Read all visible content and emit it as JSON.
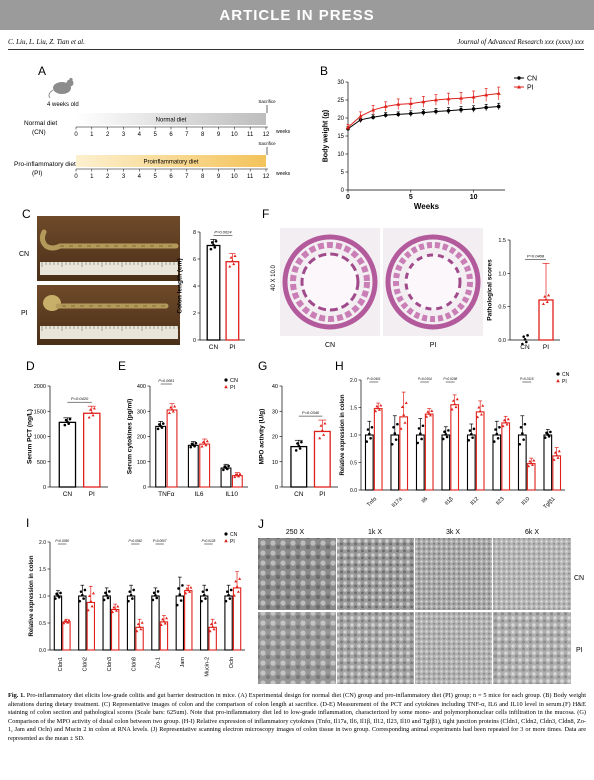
{
  "banner": "ARTICLE IN PRESS",
  "header": {
    "authors": "C. Liu, L. Liu, Z. Tian et al.",
    "journal": "Journal of Advanced Research xxx (xxxx) xxx"
  },
  "caption": {
    "fig_label": "Fig. 1.",
    "text": " Pro-inflammatory diet elicits low-grade colitis and gut barrier destruction in mice. (A) Experimental design for normal diet (CN) group and pro-inflammatory diet (PI) group; n = 5 mice for each group. (B) Body weight alterations during dietary treatment. (C) Representative images of colon and the comparison of colon length at sacrifice. (D-E) Measurement of the PCT and cytokines including TNF-α, IL6 and IL10 level in serum.(F) H&E staining of colon section and pathological scores (Scale bars: 625um). Note that pro-inflammatory diet led to low-grade inflammation, characterized by some mono- and polymorphonuclear cells infiltration in the mucosa. (G) Comparison of the MPO activity of distal colon between two group. (H-I) Relative expression of inflammatory cytokines (Tnfα, Il17a, Il6, Il1β, Il12, Il23, Il10 and Tgfβ1), tight junction proteins (Cldn1, Cldn2, Cldn3, Cldn8, Zo-1, Jam and Ocln) and Mucin 2 in colon at RNA levels. (J) Representative scanning electron microscopy images of colon tissue in two group. Corresponding animal experiments had been repeated for 3 or more times. Data are represented as the mean ± SD."
  },
  "colors": {
    "cn": "#000000",
    "pi": "#e0201b",
    "normal_bar": "#d8d8d8",
    "pi_bar": "#f7d27d",
    "he_stain": "#b35a9c"
  },
  "panel_a": {
    "label": "A",
    "mouse_label": "4 weeks old",
    "row1_label_line1": "Normal diet",
    "row1_label_line2": "(CN)",
    "row1_bar_text": "Normal diet",
    "row1_arrow_text": "Sacrifice",
    "row2_label_line1": "Pro-inflammatory diet",
    "row2_label_line2": "(PI)",
    "row2_bar_text": "Proinflammatory diet",
    "row2_arrow_text": "Sacrifice",
    "weeks_label": "weeks",
    "ticks": [
      "0",
      "1",
      "2",
      "3",
      "4",
      "5",
      "6",
      "7",
      "8",
      "9",
      "10",
      "11",
      "12"
    ]
  },
  "panel_c_photo": {
    "label": "C",
    "row_cn": "CN",
    "row_pi": "PI"
  },
  "panel_f_photo": {
    "label": "F",
    "side_label": "40 X 10.0",
    "col_cn": "CN",
    "col_pi": "PI"
  },
  "panel_j": {
    "label": "J",
    "columns": [
      "250 X",
      "1k X",
      "3k X",
      "6k X"
    ],
    "rows": [
      "CN",
      "PI"
    ]
  },
  "chart_data": [
    {
      "panel": "B",
      "type": "line",
      "xlabel": "Weeks",
      "ylabel": "Body weight (g)",
      "ylim": [
        0,
        30
      ],
      "xlim": [
        0,
        12.5
      ],
      "xticks": [
        0,
        5,
        10
      ],
      "yticks": [
        0,
        5,
        10,
        15,
        20,
        25,
        30
      ],
      "legend": "top-right",
      "x": [
        0,
        1,
        2,
        3,
        4,
        5,
        6,
        7,
        8,
        9,
        10,
        11,
        12
      ],
      "series": [
        {
          "name": "CN",
          "values": [
            17.0,
            19.5,
            20.2,
            20.8,
            21.0,
            21.2,
            21.5,
            21.8,
            22.0,
            22.3,
            22.5,
            22.9,
            23.2
          ],
          "err": [
            0.6,
            0.8,
            0.7,
            0.7,
            0.7,
            0.8,
            0.8,
            0.8,
            0.9,
            0.9,
            0.9,
            0.9,
            0.9
          ]
        },
        {
          "name": "PI",
          "values": [
            17.4,
            20.5,
            22.2,
            23.2,
            23.8,
            24.0,
            24.5,
            25.0,
            25.3,
            25.5,
            25.8,
            26.4,
            26.8
          ],
          "err": [
            0.8,
            1.2,
            1.3,
            1.3,
            1.5,
            1.5,
            1.5,
            1.5,
            1.6,
            1.6,
            1.7,
            1.8,
            1.8
          ]
        }
      ]
    },
    {
      "panel": "C",
      "type": "bar",
      "ylabel": "Colon length (cm)",
      "ylim": [
        0,
        8
      ],
      "yticks": [
        0,
        2,
        4,
        6,
        8
      ],
      "categories": [
        "CN",
        "PI"
      ],
      "values": [
        7.0,
        5.8
      ],
      "err": [
        0.45,
        0.6
      ],
      "pvalue": "P=0.0024"
    },
    {
      "panel": "F",
      "type": "bar",
      "ylabel": "Pathological scores",
      "ylim": [
        0,
        1.5
      ],
      "yticks": [
        0.0,
        0.5,
        1.0,
        1.5
      ],
      "categories": [
        "CN",
        "PI"
      ],
      "values": [
        0.0,
        0.6
      ],
      "err": [
        0.0,
        0.55
      ],
      "pvalue": "P=0.0408"
    },
    {
      "panel": "D",
      "type": "bar",
      "ylabel": "Serum PCT (ng/L)",
      "ylim": [
        0,
        2000
      ],
      "yticks": [
        0,
        500,
        1000,
        1500,
        2000
      ],
      "categories": [
        "CN",
        "PI"
      ],
      "values": [
        1280,
        1460
      ],
      "err": [
        90,
        140
      ],
      "pvalue": "P=0.0420"
    },
    {
      "panel": "E",
      "type": "bar",
      "ylabel": "Serum cytokines (pg/ml)",
      "ylim": [
        0,
        400
      ],
      "yticks": [
        0,
        100,
        200,
        300,
        400
      ],
      "legend": "top-right",
      "categories": [
        "TNFα",
        "IL6",
        "IL10"
      ],
      "series": [
        {
          "name": "CN",
          "values": [
            240,
            165,
            75
          ],
          "err": [
            20,
            15,
            15
          ]
        },
        {
          "name": "PI",
          "values": [
            305,
            170,
            45
          ],
          "err": [
            25,
            20,
            12
          ]
        }
      ],
      "pvalues": [
        "P=0.0081",
        "",
        ""
      ]
    },
    {
      "panel": "G",
      "type": "bar",
      "ylabel": "MPO activity (U/g)",
      "ylim": [
        0,
        40
      ],
      "yticks": [
        0,
        10,
        20,
        30,
        40
      ],
      "categories": [
        "CN",
        "PI"
      ],
      "values": [
        16,
        22
      ],
      "err": [
        2.5,
        4.5
      ],
      "pvalue": "P=0.0340"
    },
    {
      "panel": "H",
      "type": "bar",
      "ylabel": "Relative expression in colon",
      "ylim": [
        0,
        2.0
      ],
      "yticks": [
        0.0,
        0.5,
        1.0,
        1.5,
        2.0
      ],
      "legend": "top-right",
      "categories": [
        "Tnfα",
        "Il17a",
        "Il6",
        "Il1β",
        "Il12",
        "Il23",
        "Il10",
        "Tgfβ1"
      ],
      "series": [
        {
          "name": "CN",
          "values": [
            1.0,
            1.0,
            1.0,
            1.0,
            1.0,
            1.0,
            1.0,
            1.0
          ],
          "err": [
            0.25,
            0.35,
            0.3,
            0.15,
            0.2,
            0.25,
            0.35,
            0.1
          ]
        },
        {
          "name": "PI",
          "values": [
            1.48,
            1.33,
            1.38,
            1.55,
            1.42,
            1.22,
            0.48,
            0.62
          ],
          "err": [
            0.1,
            0.45,
            0.1,
            0.18,
            0.2,
            0.12,
            0.1,
            0.15
          ]
        }
      ],
      "pvalues": [
        "P=0.0401",
        "",
        "P=0.0104",
        "P=0.0298",
        "",
        "",
        "P=0.0115",
        ""
      ]
    },
    {
      "panel": "I",
      "type": "bar",
      "ylabel": "Relative expression in colon",
      "ylim": [
        0,
        2.0
      ],
      "yticks": [
        0.0,
        0.5,
        1.0,
        1.5,
        2.0
      ],
      "legend": "top-right",
      "categories": [
        "Cldn1",
        "Cldn2",
        "Cldn3",
        "Cldn8",
        "Zo-1",
        "Jam",
        "Mucin-2",
        "Ocln"
      ],
      "series": [
        {
          "name": "CN",
          "values": [
            1.0,
            1.0,
            1.0,
            1.0,
            1.0,
            1.0,
            1.0,
            1.0
          ],
          "err": [
            0.1,
            0.2,
            0.15,
            0.2,
            0.15,
            0.35,
            0.2,
            0.2
          ]
        },
        {
          "name": "PI",
          "values": [
            0.52,
            0.88,
            0.75,
            0.42,
            0.52,
            1.1,
            0.42,
            1.15
          ],
          "err": [
            0.05,
            0.3,
            0.1,
            0.15,
            0.12,
            0.1,
            0.15,
            0.3
          ]
        }
      ],
      "pvalues": [
        "P=0.0050",
        "",
        "",
        "P=0.0062",
        "P=0.0007",
        "",
        "P=0.0128",
        ""
      ]
    }
  ]
}
